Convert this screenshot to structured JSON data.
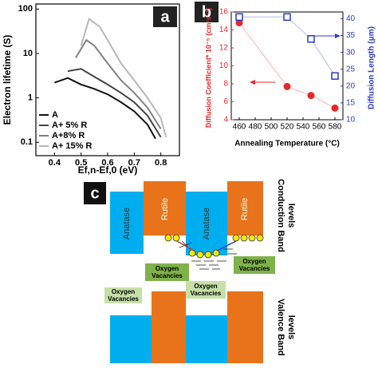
{
  "chart_data": [
    {
      "type": "line",
      "title": "a",
      "xlabel": "Ef,n-Ef,0 (eV)",
      "ylabel": "Electron lifetime (S)",
      "yscale": "log",
      "xlim": [
        0.33,
        0.87
      ],
      "xticks": [
        0.4,
        0.5,
        0.6,
        0.7,
        0.8
      ],
      "ylim": [
        0.05,
        130
      ],
      "yticks": [
        0.1,
        1,
        10,
        100
      ],
      "legend": "lower left",
      "series": [
        {
          "name": "A",
          "color": "#111111",
          "x": [
            0.4,
            0.45,
            0.5,
            0.55,
            0.6,
            0.65,
            0.7,
            0.75,
            0.78
          ],
          "values": [
            2.2,
            2.8,
            2.0,
            1.6,
            1.2,
            0.8,
            0.5,
            0.25,
            0.12
          ]
        },
        {
          "name": "A+ 5% R",
          "color": "#444444",
          "x": [
            0.45,
            0.5,
            0.55,
            0.6,
            0.65,
            0.7,
            0.75,
            0.8
          ],
          "values": [
            4,
            4.5,
            3,
            2,
            1.3,
            0.8,
            0.4,
            0.13
          ]
        },
        {
          "name": "A+8% R",
          "color": "#808080",
          "x": [
            0.48,
            0.52,
            0.55,
            0.6,
            0.65,
            0.7,
            0.75,
            0.8
          ],
          "values": [
            8,
            20,
            15,
            6,
            2.5,
            1.3,
            0.6,
            0.2
          ]
        },
        {
          "name": "A+ 15% R",
          "color": "#b8b8b8",
          "x": [
            0.5,
            0.53,
            0.57,
            0.6,
            0.65,
            0.7,
            0.75,
            0.8,
            0.82
          ],
          "values": [
            15,
            60,
            40,
            20,
            6,
            2.5,
            1,
            0.35,
            0.13
          ]
        }
      ]
    },
    {
      "type": "scatter",
      "title": "b",
      "xlabel": "Annealing Temperature (°C)",
      "ylabel": "Diffusion Coefficient* 10⁻⁵ (cm²s⁻¹)",
      "y2label": "Diffusion Length (μm)",
      "xlim": [
        450,
        590
      ],
      "xticks": [
        460,
        480,
        500,
        520,
        540,
        560,
        580
      ],
      "ylim": [
        4,
        16
      ],
      "yticks": [
        4,
        6,
        8,
        10,
        12,
        14,
        16
      ],
      "y2lim": [
        10,
        42
      ],
      "y2ticks": [
        10,
        15,
        20,
        25,
        30,
        35,
        40
      ],
      "series": [
        {
          "color": "#e8262a",
          "marker": "circle",
          "x": [
            460,
            520,
            550,
            580
          ],
          "values": [
            14.8,
            7.7,
            6.7,
            5.3
          ]
        },
        {
          "color": "#2a3cc8",
          "marker": "square-open",
          "axis": "y2",
          "x": [
            460,
            520,
            550,
            580
          ],
          "values": [
            40.5,
            40.5,
            34,
            23
          ]
        }
      ]
    }
  ],
  "diagram": {
    "panel_label": "c",
    "phases": [
      "Anatase",
      "Rutile",
      "Anatase",
      "Rutile"
    ],
    "band_labels": [
      [
        "Conduction Band",
        "levels"
      ],
      [
        "Valence Band",
        "levels"
      ]
    ],
    "vacancies": [
      [
        "Oxygen",
        "Vacancies"
      ],
      [
        "Oxygen",
        "Vacancies"
      ],
      [
        "Oxygen",
        "Vacancies"
      ],
      [
        "Oxygen",
        "Vacancies"
      ]
    ]
  }
}
